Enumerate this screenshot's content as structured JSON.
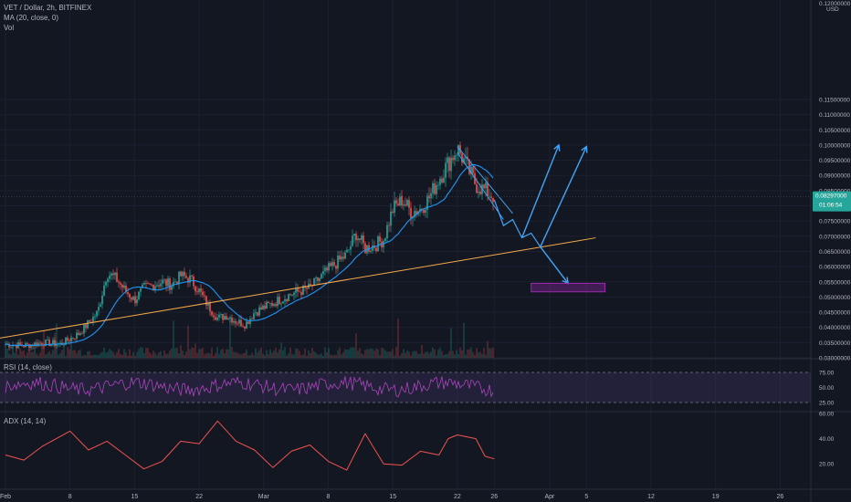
{
  "header": {
    "symbol_line": "VET / Dollar, 2h, BITFINEX",
    "ma_label": "MA (20, close, 0)",
    "vol_label": "Vol",
    "currency": "USD",
    "top_tick": "0.12000000"
  },
  "price_badge": {
    "price": "0.08297000",
    "countdown": "01:06:54",
    "color": "#26a69a"
  },
  "rsi": {
    "label": "RSI (14, close)",
    "ticks": [
      "75.00",
      "50.00",
      "25.00"
    ],
    "color": "#ab47bc"
  },
  "adx": {
    "label": "ADX (14, 14)",
    "ticks": [
      "60.00",
      "40.00",
      "20.00"
    ],
    "color": "#ef5350"
  },
  "colors": {
    "up": "#26a69a",
    "down": "#ef5350",
    "ma": "#2196f3",
    "trendline": "#f7a94b",
    "projection": "#42a5f5",
    "target_zone": "#9c27b0"
  },
  "chart_data": {
    "type": "candlestick",
    "y_scale": "linear",
    "ylim": [
      0.03,
      0.12
    ],
    "yticks": [
      "0.11500000",
      "0.11000000",
      "0.10500000",
      "0.10000000",
      "0.09500000",
      "0.09000000",
      "0.08500000",
      "0.08000000",
      "0.07500000",
      "0.07000000",
      "0.06500000",
      "0.06000000",
      "0.05500000",
      "0.05000000",
      "0.04500000",
      "0.04000000",
      "0.03500000",
      "0.03000000"
    ],
    "x_tick_labels": [
      "Feb",
      "8",
      "15",
      "22",
      "Mar",
      "8",
      "15",
      "22",
      "26",
      "Apr",
      "5",
      "12",
      "19",
      "26"
    ],
    "price_path": [
      [
        "Feb 1",
        0.0345
      ],
      [
        "Feb 3",
        0.034
      ],
      [
        "Feb 5",
        0.035
      ],
      [
        "Feb 7",
        0.0345
      ],
      [
        "Feb 9",
        0.038
      ],
      [
        "Feb 11",
        0.045
      ],
      [
        "Feb 12",
        0.058
      ],
      [
        "Feb 13",
        0.056
      ],
      [
        "Feb 14",
        0.052
      ],
      [
        "Feb 15",
        0.049
      ],
      [
        "Feb 16",
        0.053
      ],
      [
        "Feb 18",
        0.055
      ],
      [
        "Feb 19",
        0.054
      ],
      [
        "Feb 20",
        0.057
      ],
      [
        "Feb 21",
        0.056
      ],
      [
        "Feb 22",
        0.052
      ],
      [
        "Feb 23",
        0.047
      ],
      [
        "Feb 24",
        0.043
      ],
      [
        "Feb 25",
        0.044
      ],
      [
        "Feb 26",
        0.042
      ],
      [
        "Feb 27",
        0.041
      ],
      [
        "Feb 28",
        0.045
      ],
      [
        "Mar 2",
        0.048
      ],
      [
        "Mar 4",
        0.051
      ],
      [
        "Mar 6",
        0.053
      ],
      [
        "Mar 8",
        0.059
      ],
      [
        "Mar 10",
        0.064
      ],
      [
        "Mar 11",
        0.071
      ],
      [
        "Mar 12",
        0.066
      ],
      [
        "Mar 13",
        0.067
      ],
      [
        "Mar 14",
        0.069
      ],
      [
        "Mar 15",
        0.079
      ],
      [
        "Mar 16",
        0.082
      ],
      [
        "Mar 17",
        0.078
      ],
      [
        "Mar 18",
        0.079
      ],
      [
        "Mar 19",
        0.083
      ],
      [
        "Mar 20",
        0.089
      ],
      [
        "Mar 21",
        0.094
      ],
      [
        "Mar 22",
        0.099
      ],
      [
        "Mar 23",
        0.093
      ],
      [
        "Mar 24",
        0.087
      ],
      [
        "Mar 25",
        0.085
      ],
      [
        "Mar 26",
        0.083
      ]
    ],
    "ma20": {
      "name": "MA (20, close, 0)",
      "period": 20
    },
    "trendline": {
      "from": [
        "Feb 1",
        0.0365
      ],
      "to": [
        "Apr 1",
        0.0685
      ]
    },
    "projection": {
      "path": [
        [
          "Mar 26",
          0.082
        ],
        [
          "Mar 27",
          0.0735
        ],
        [
          "Mar 28",
          0.0755
        ],
        [
          "Mar 29",
          0.0695
        ],
        [
          "Mar 30",
          0.071
        ],
        [
          "Mar 31",
          0.0665
        ]
      ],
      "up_branch_1": [
        [
          "Mar 29",
          0.0695
        ],
        [
          "Apr 2",
          0.1
        ]
      ],
      "up_branch_2": [
        [
          "Mar 31",
          0.0665
        ],
        [
          "Apr 5",
          0.0995
        ]
      ],
      "down_branch": [
        [
          "Mar 31",
          0.0665
        ],
        [
          "Apr 3",
          0.0545
        ]
      ]
    },
    "target_zone": {
      "x_from": "Mar 30",
      "x_to": "Apr 7",
      "y_from": 0.0517,
      "y_to": 0.0545
    },
    "rsi": {
      "name": "RSI (14, close)",
      "overbought": 75,
      "oversold": 25,
      "range": [
        25,
        75
      ]
    },
    "adx": {
      "name": "ADX (14, 14)",
      "range": [
        10,
        60
      ]
    },
    "adx_path": [
      [
        "Feb 1",
        27
      ],
      [
        "Feb 3",
        23
      ],
      [
        "Feb 5",
        34
      ],
      [
        "Feb 8",
        46
      ],
      [
        "Feb 10",
        31
      ],
      [
        "Feb 12",
        38
      ],
      [
        "Feb 14",
        27
      ],
      [
        "Feb 16",
        16
      ],
      [
        "Feb 18",
        22
      ],
      [
        "Feb 20",
        38
      ],
      [
        "Feb 22",
        36
      ],
      [
        "Feb 24",
        54
      ],
      [
        "Feb 26",
        38
      ],
      [
        "Feb 28",
        31
      ],
      [
        "Mar 2",
        17
      ],
      [
        "Mar 4",
        30
      ],
      [
        "Mar 6",
        35
      ],
      [
        "Mar 8",
        22
      ],
      [
        "Mar 10",
        15
      ],
      [
        "Mar 12",
        44
      ],
      [
        "Mar 14",
        20
      ],
      [
        "Mar 16",
        19
      ],
      [
        "Mar 18",
        30
      ],
      [
        "Mar 20",
        27
      ],
      [
        "Mar 21",
        40
      ],
      [
        "Mar 22",
        43
      ],
      [
        "Mar 24",
        40
      ],
      [
        "Mar 25",
        26
      ],
      [
        "Mar 26",
        24
      ]
    ]
  }
}
